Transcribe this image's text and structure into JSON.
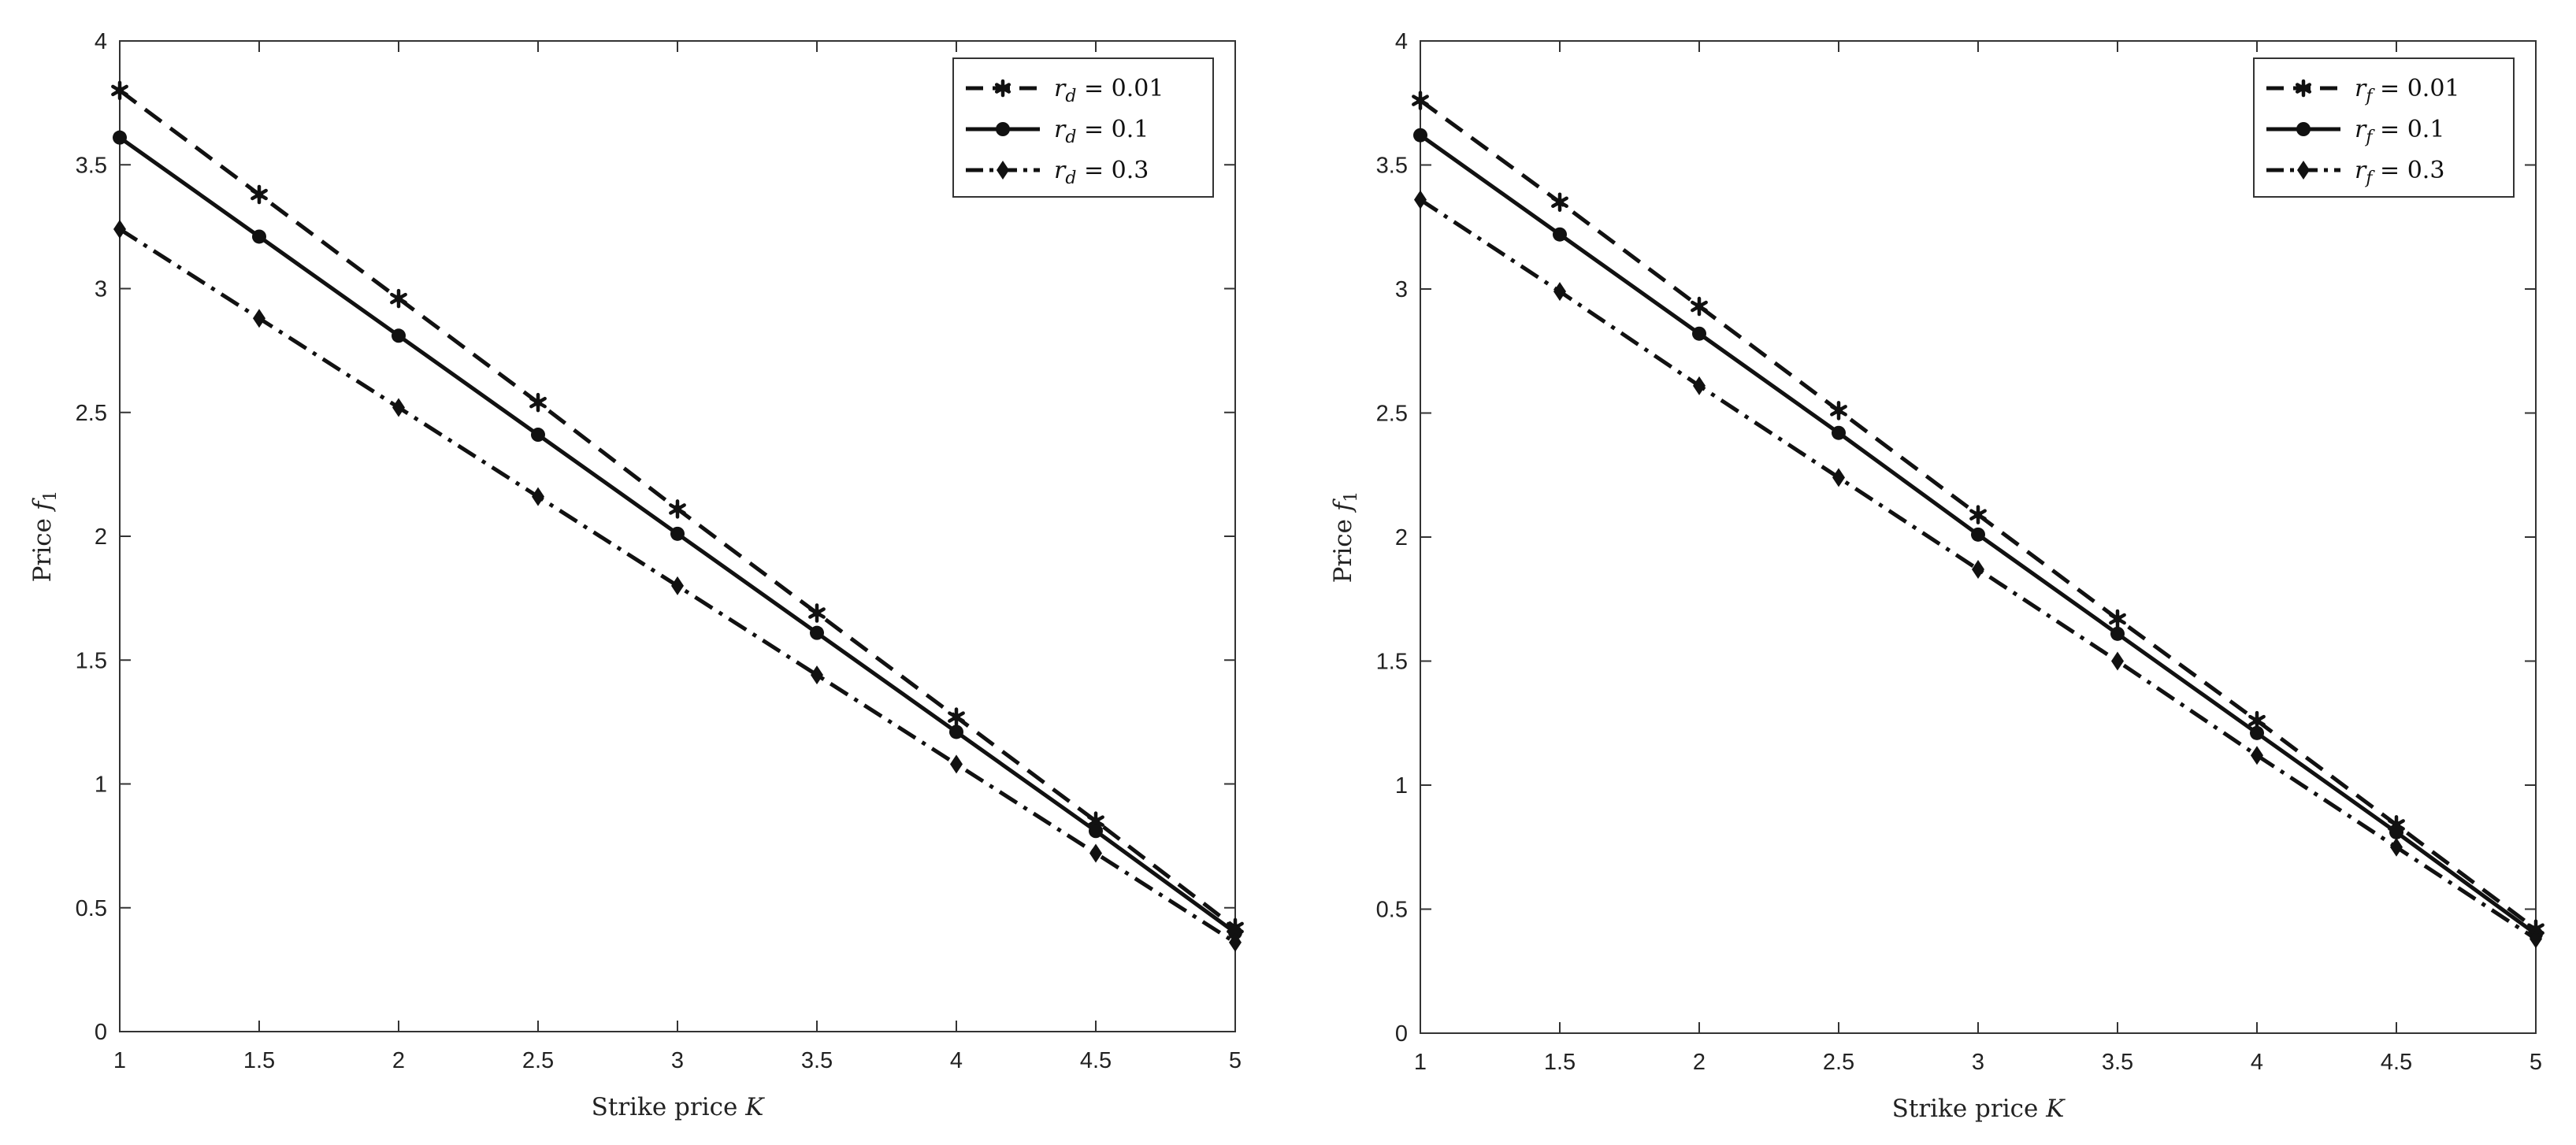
{
  "chart_data": [
    {
      "type": "line",
      "xlabel": "Strike price K",
      "ylabel": "Price f1",
      "xlim": [
        1,
        5
      ],
      "ylim": [
        0,
        4
      ],
      "xticks": [
        "1",
        "1.5",
        "2",
        "2.5",
        "3",
        "3.5",
        "4",
        "4.5",
        "5"
      ],
      "yticks": [
        "0",
        "0.5",
        "1",
        "1.5",
        "2",
        "2.5",
        "3",
        "3.5",
        "4"
      ],
      "grid": false,
      "legend_position": "top-right",
      "x": [
        1,
        1.5,
        2,
        2.5,
        3,
        3.5,
        4,
        4.5,
        5
      ],
      "series": [
        {
          "name": "r_d = 0.01",
          "values": [
            3.8,
            3.38,
            2.96,
            2.54,
            2.11,
            1.69,
            1.27,
            0.85,
            0.42
          ],
          "style": "dashed",
          "marker": "star"
        },
        {
          "name": "r_d = 0.1",
          "values": [
            3.61,
            3.21,
            2.81,
            2.41,
            2.01,
            1.61,
            1.21,
            0.81,
            0.4
          ],
          "style": "solid",
          "marker": "circle"
        },
        {
          "name": "r_d = 0.3",
          "values": [
            3.24,
            2.88,
            2.52,
            2.16,
            1.8,
            1.44,
            1.08,
            0.72,
            0.36
          ],
          "style": "dashdot",
          "marker": "diamond"
        }
      ]
    },
    {
      "type": "line",
      "xlabel": "Strike price K",
      "ylabel": "Price f1",
      "xlim": [
        1,
        5
      ],
      "ylim": [
        0,
        4
      ],
      "xticks": [
        "1",
        "1.5",
        "2",
        "2.5",
        "3",
        "3.5",
        "4",
        "4.5",
        "5"
      ],
      "yticks": [
        "0",
        "0.5",
        "1",
        "1.5",
        "2",
        "2.5",
        "3",
        "3.5",
        "4"
      ],
      "grid": false,
      "legend_position": "top-right",
      "x": [
        1,
        1.5,
        2,
        2.5,
        3,
        3.5,
        4,
        4.5,
        5
      ],
      "series": [
        {
          "name": "r_f = 0.01",
          "values": [
            3.76,
            3.35,
            2.93,
            2.51,
            2.09,
            1.67,
            1.26,
            0.84,
            0.42
          ],
          "style": "dashed",
          "marker": "star"
        },
        {
          "name": "r_f = 0.1",
          "values": [
            3.62,
            3.22,
            2.82,
            2.42,
            2.01,
            1.61,
            1.21,
            0.81,
            0.4
          ],
          "style": "solid",
          "marker": "circle"
        },
        {
          "name": "r_f = 0.3",
          "values": [
            3.36,
            2.99,
            2.61,
            2.24,
            1.87,
            1.5,
            1.12,
            0.75,
            0.38
          ],
          "style": "dashdot",
          "marker": "diamond"
        }
      ]
    }
  ],
  "legend_labels": [
    [
      {
        "sym": "r",
        "sub": "d",
        "rest": " = 0.01"
      },
      {
        "sym": "r",
        "sub": "d",
        "rest": " = 0.1"
      },
      {
        "sym": "r",
        "sub": "d",
        "rest": " = 0.3"
      }
    ],
    [
      {
        "sym": "r",
        "sub": "f",
        "rest": " = 0.01"
      },
      {
        "sym": "r",
        "sub": "f",
        "rest": " = 0.1"
      },
      {
        "sym": "r",
        "sub": "f",
        "rest": " = 0.3"
      }
    ]
  ],
  "axis_titles": {
    "x_text": "Strike price ",
    "x_sym": "K",
    "y_text": "Price ",
    "y_sym": "f",
    "y_sub": "1"
  },
  "colors": {
    "line": "#111111",
    "axis": "#333333",
    "background": "#ffffff"
  }
}
